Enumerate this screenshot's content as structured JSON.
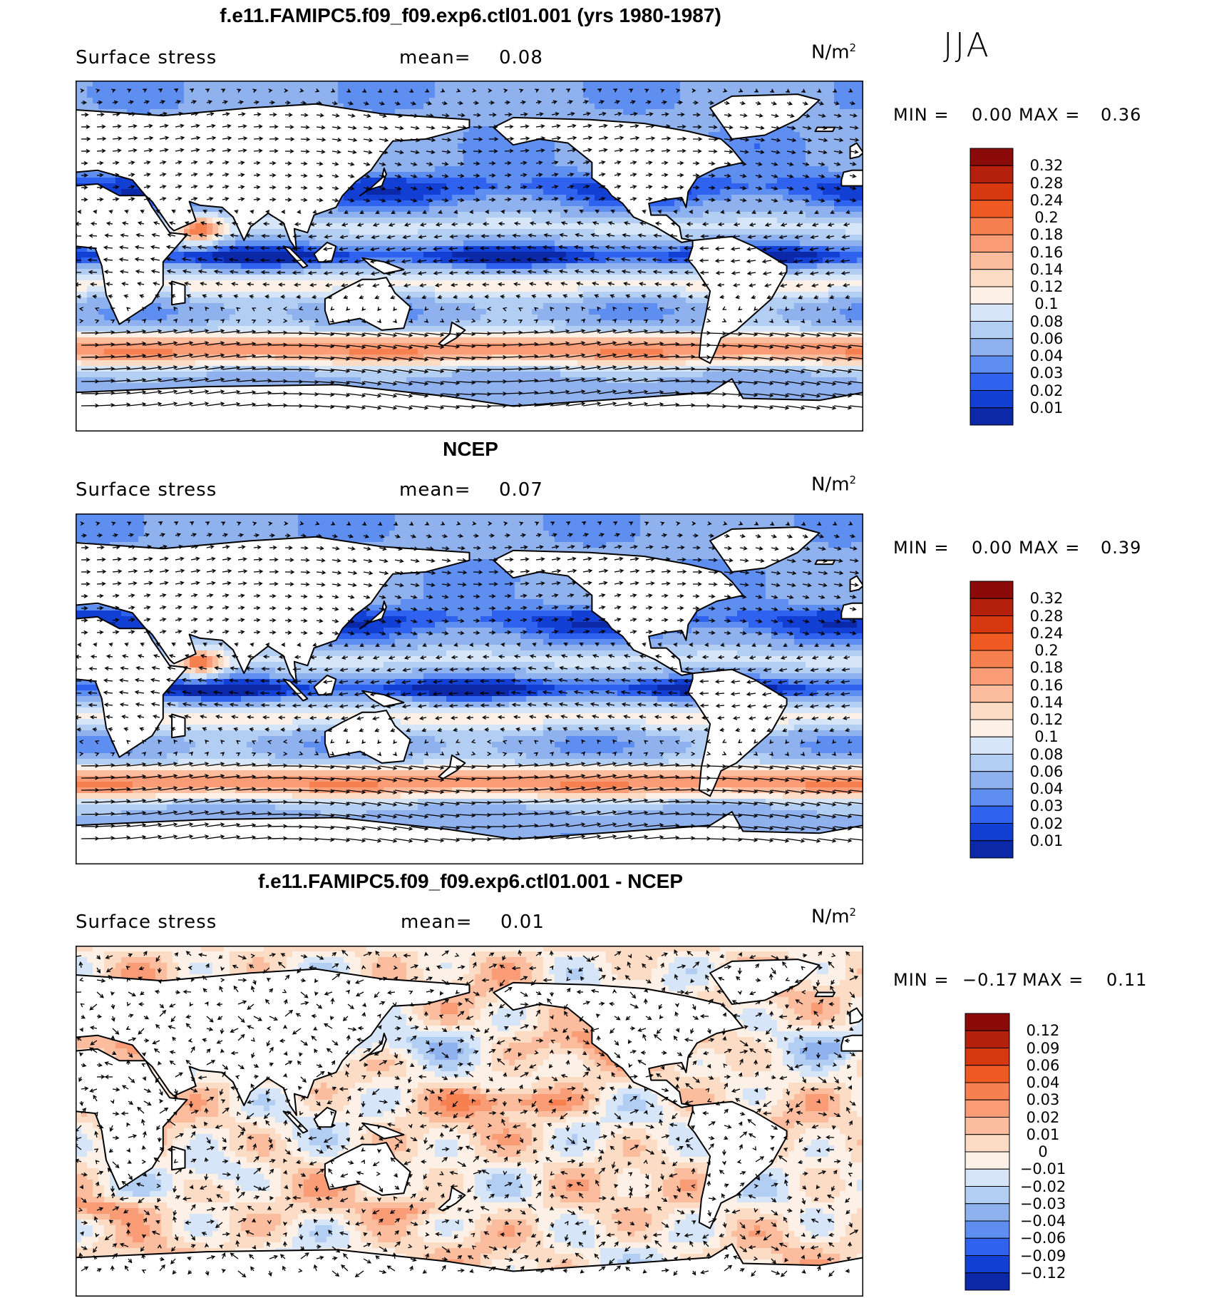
{
  "season": "JJA",
  "panels": [
    {
      "id": "model",
      "title": "f.e11.FAMIPC5.f09_f09.exp6.ctl01.001 (yrs 1980-1987)",
      "variable": "Surface stress",
      "mean_label": "mean=",
      "mean_value": "0.08",
      "unit_base": "N/m",
      "unit_sup": "2",
      "min_label": "MIN =",
      "min_value": "0.00",
      "max_label": "MAX =",
      "max_value": "0.36",
      "scale": "absolute"
    },
    {
      "id": "obs",
      "title": "NCEP",
      "variable": "Surface stress",
      "mean_label": "mean=",
      "mean_value": "0.07",
      "unit_base": "N/m",
      "unit_sup": "2",
      "min_label": "MIN =",
      "min_value": "0.00",
      "max_label": "MAX =",
      "max_value": "0.39",
      "scale": "absolute"
    },
    {
      "id": "diff",
      "title": "f.e11.FAMIPC5.f09_f09.exp6.ctl01.001 - NCEP",
      "variable": "Surface stress",
      "mean_label": "mean=",
      "mean_value": "0.01",
      "unit_base": "N/m",
      "unit_sup": "2",
      "min_label": "MIN =",
      "min_value": "−0.17",
      "max_label": "MAX =",
      "max_value": "0.11",
      "scale": "difference"
    }
  ],
  "colorbars": {
    "absolute": {
      "labels": [
        "0.32",
        "0.28",
        "0.24",
        "0.2",
        "0.18",
        "0.16",
        "0.14",
        "0.12",
        "0.1",
        "0.08",
        "0.06",
        "0.04",
        "0.03",
        "0.02",
        "0.01"
      ],
      "colors": [
        "#8b0a0a",
        "#b4200c",
        "#d8380f",
        "#ee5a22",
        "#f6804f",
        "#fa9d76",
        "#fbbd9e",
        "#fddcc6",
        "#fdf0e6",
        "#d6e6f8",
        "#b3cef3",
        "#8fb2ef",
        "#5e8ef0",
        "#2f62ee",
        "#123fd4",
        "#0a28a8"
      ]
    },
    "difference": {
      "labels": [
        "0.12",
        "0.09",
        "0.06",
        "0.04",
        "0.03",
        "0.02",
        "0.01",
        "0",
        "−0.01",
        "−0.02",
        "−0.03",
        "−0.04",
        "−0.06",
        "−0.09",
        "−0.12"
      ],
      "colors": [
        "#8b0a0a",
        "#b4200c",
        "#d8380f",
        "#ee5a22",
        "#f6804f",
        "#fa9d76",
        "#fbbd9e",
        "#fddcc6",
        "#fdf0e6",
        "#d6e6f8",
        "#b3cef3",
        "#8fb2ef",
        "#5e8ef0",
        "#2f62ee",
        "#123fd4",
        "#0a28a8"
      ]
    }
  }
}
